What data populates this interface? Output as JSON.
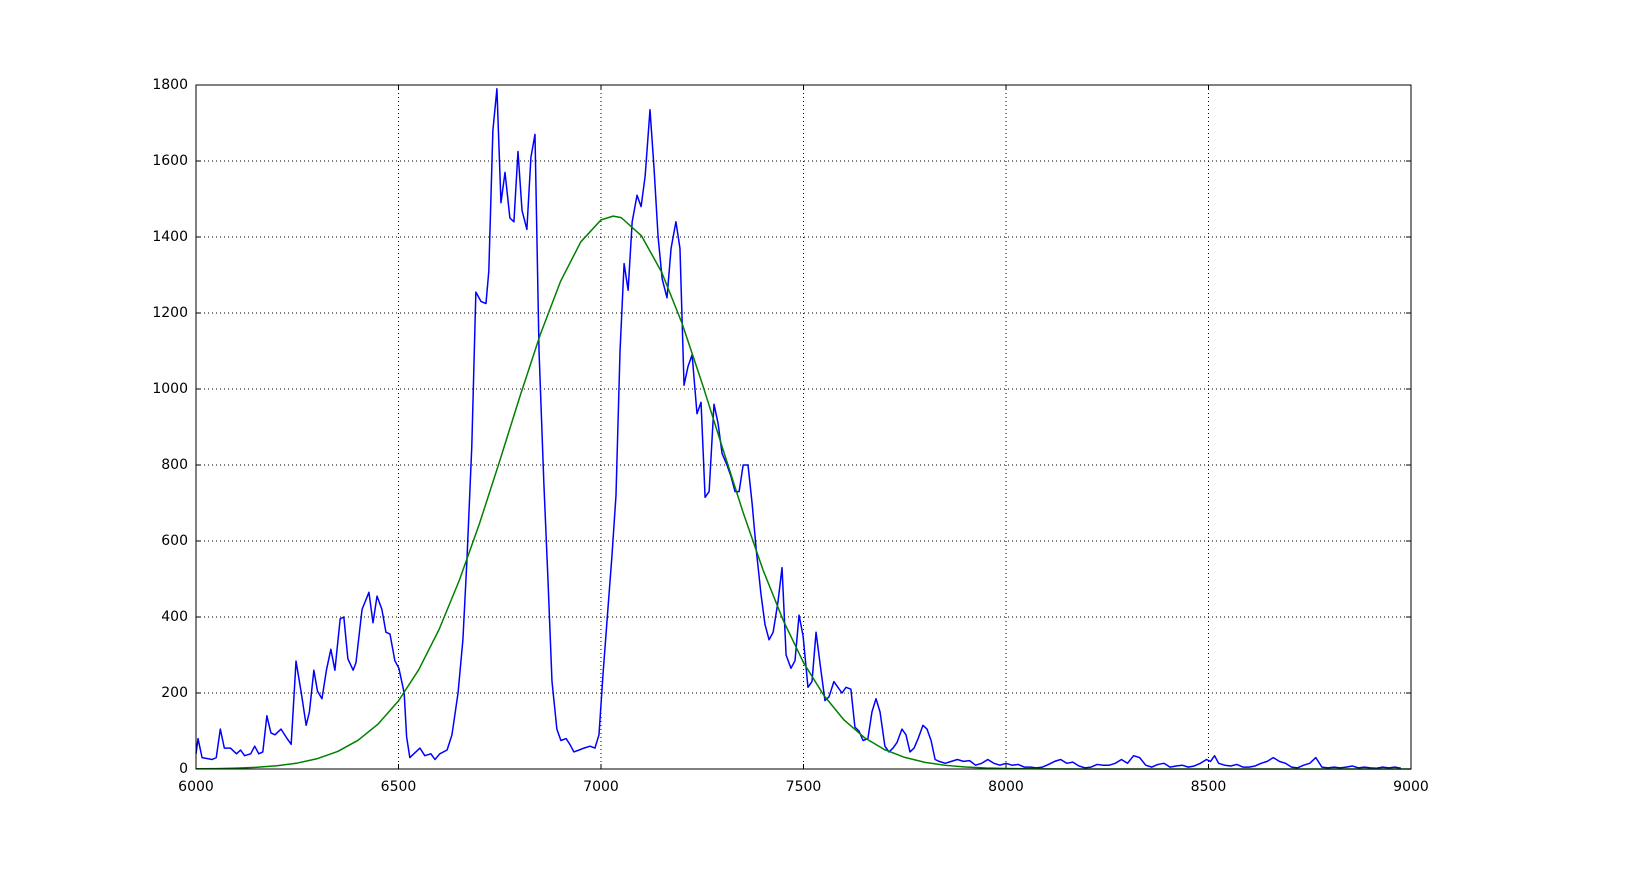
{
  "chart_data": {
    "type": "line",
    "xlim": [
      6000,
      9000
    ],
    "xticks": [
      6000,
      6500,
      7000,
      7500,
      8000,
      8500,
      9000
    ],
    "ylim": [
      0,
      1800
    ],
    "yticks": [
      0,
      200,
      400,
      600,
      800,
      1000,
      1200,
      1400,
      1600,
      1800
    ],
    "grid": true,
    "series": [
      {
        "color": "#0000ff",
        "x": [
          6000,
          6005,
          6015,
          6040,
          6050,
          6060,
          6070,
          6085,
          6100,
          6110,
          6120,
          6135,
          6145,
          6155,
          6165,
          6175,
          6185,
          6195,
          6210,
          6225,
          6235,
          6247,
          6260,
          6272,
          6280,
          6291,
          6300,
          6311,
          6322,
          6333,
          6343,
          6356,
          6365,
          6375,
          6388,
          6395,
          6410,
          6427,
          6437,
          6447,
          6459,
          6469,
          6479,
          6491,
          6501,
          6514,
          6520,
          6528,
          6553,
          6565,
          6580,
          6590,
          6602,
          6620,
          6632,
          6647,
          6659,
          6669,
          6681,
          6691,
          6704,
          6716,
          6723,
          6733,
          6743,
          6753,
          6763,
          6775,
          6785,
          6795,
          6805,
          6817,
          6827,
          6837,
          6847,
          6859,
          6869,
          6879,
          6891,
          6901,
          6914,
          6923,
          6933,
          6946,
          6958,
          6973,
          6985,
          6995,
          7005,
          7017,
          7027,
          7037,
          7047,
          7057,
          7067,
          7077,
          7089,
          7099,
          7109,
          7121,
          7131,
          7141,
          7151,
          7163,
          7173,
          7185,
          7195,
          7205,
          7215,
          7225,
          7237,
          7247,
          7257,
          7267,
          7279,
          7289,
          7299,
          7311,
          7321,
          7331,
          7341,
          7351,
          7363,
          7373,
          7383,
          7395,
          7405,
          7415,
          7425,
          7437,
          7447,
          7457,
          7469,
          7479,
          7489,
          7499,
          7511,
          7521,
          7531,
          7543,
          7553,
          7563,
          7575,
          7585,
          7595,
          7605,
          7617,
          7627,
          7637,
          7647,
          7659,
          7669,
          7679,
          7689,
          7701,
          7711,
          7721,
          7731,
          7743,
          7753,
          7763,
          7773,
          7783,
          7795,
          7805,
          7815,
          7825,
          7835,
          7850,
          7865,
          7880,
          7895,
          7910,
          7925,
          7940,
          7955,
          7970,
          7985,
          8000,
          8015,
          8030,
          8045,
          8060,
          8075,
          8090,
          8105,
          8120,
          8135,
          8150,
          8165,
          8180,
          8195,
          8210,
          8225,
          8240,
          8255,
          8270,
          8285,
          8300,
          8315,
          8330,
          8345,
          8360,
          8375,
          8390,
          8405,
          8420,
          8435,
          8450,
          8465,
          8480,
          8495,
          8505,
          8515,
          8525,
          8540,
          8555,
          8570,
          8585,
          8600,
          8615,
          8630,
          8645,
          8660,
          8675,
          8690,
          8705,
          8720,
          8735,
          8750,
          8765,
          8780,
          8795,
          8810,
          8825,
          8840,
          8855,
          8870,
          8885,
          8900,
          8915,
          8930,
          8945,
          8960,
          8975
        ],
        "values": [
          40,
          80,
          30,
          25,
          30,
          105,
          55,
          55,
          40,
          50,
          35,
          40,
          60,
          40,
          45,
          140,
          95,
          90,
          105,
          80,
          65,
          284,
          200,
          115,
          150,
          260,
          205,
          185,
          260,
          315,
          260,
          395,
          400,
          290,
          260,
          280,
          420,
          465,
          385,
          455,
          420,
          360,
          355,
          285,
          265,
          200,
          85,
          30,
          55,
          35,
          40,
          25,
          40,
          50,
          90,
          200,
          340,
          550,
          850,
          1255,
          1230,
          1225,
          1310,
          1680,
          1790,
          1490,
          1570,
          1450,
          1440,
          1625,
          1470,
          1420,
          1610,
          1670,
          1100,
          750,
          500,
          230,
          105,
          75,
          80,
          65,
          45,
          50,
          55,
          60,
          55,
          90,
          250,
          420,
          560,
          720,
          1100,
          1330,
          1260,
          1440,
          1510,
          1480,
          1560,
          1735,
          1580,
          1400,
          1290,
          1240,
          1370,
          1440,
          1370,
          1010,
          1060,
          1090,
          935,
          965,
          715,
          730,
          960,
          910,
          830,
          800,
          770,
          730,
          730,
          800,
          800,
          700,
          580,
          460,
          380,
          340,
          360,
          440,
          530,
          300,
          265,
          285,
          405,
          350,
          215,
          230,
          360,
          260,
          180,
          190,
          230,
          215,
          200,
          215,
          210,
          110,
          100,
          75,
          80,
          150,
          185,
          150,
          60,
          45,
          55,
          70,
          105,
          90,
          45,
          55,
          80,
          115,
          105,
          75,
          25,
          20,
          15,
          20,
          25,
          20,
          22,
          10,
          15,
          25,
          15,
          10,
          15,
          10,
          12,
          5,
          5,
          3,
          5,
          12,
          20,
          25,
          15,
          18,
          8,
          3,
          5,
          12,
          10,
          10,
          15,
          25,
          15,
          35,
          30,
          10,
          5,
          12,
          15,
          5,
          8,
          10,
          5,
          8,
          15,
          25,
          20,
          35,
          15,
          10,
          8,
          12,
          5,
          5,
          8,
          15,
          20,
          30,
          20,
          15,
          5,
          3,
          10,
          15,
          30,
          5,
          3,
          5,
          3,
          5,
          8,
          3,
          5,
          3,
          2,
          5,
          3,
          5,
          2
        ]
      },
      {
        "color": "#008000",
        "x": [
          6000,
          6050,
          6100,
          6150,
          6200,
          6250,
          6300,
          6350,
          6400,
          6450,
          6500,
          6550,
          6600,
          6650,
          6700,
          6750,
          6800,
          6850,
          6900,
          6950,
          7000,
          7030,
          7050,
          7100,
          7150,
          7200,
          7250,
          7300,
          7350,
          7400,
          7450,
          7500,
          7550,
          7600,
          7650,
          7700,
          7750,
          7800,
          7850,
          7900,
          7950,
          8000,
          8100,
          8200,
          8500,
          9000
        ],
        "values": [
          0.5,
          1.1,
          2.3,
          4.5,
          8.6,
          15.6,
          27.4,
          46.3,
          75.5,
          118.6,
          179.3,
          261.3,
          366.8,
          496,
          646,
          811,
          981,
          1143,
          1283,
          1387,
          1445,
          1455,
          1451,
          1403,
          1307,
          1173,
          1014,
          845,
          678,
          524,
          391,
          280,
          194,
          129,
          83,
          51,
          30.5,
          17.5,
          9.7,
          5.2,
          2.6,
          1.3,
          0.3,
          0.1,
          0,
          0
        ]
      }
    ]
  }
}
